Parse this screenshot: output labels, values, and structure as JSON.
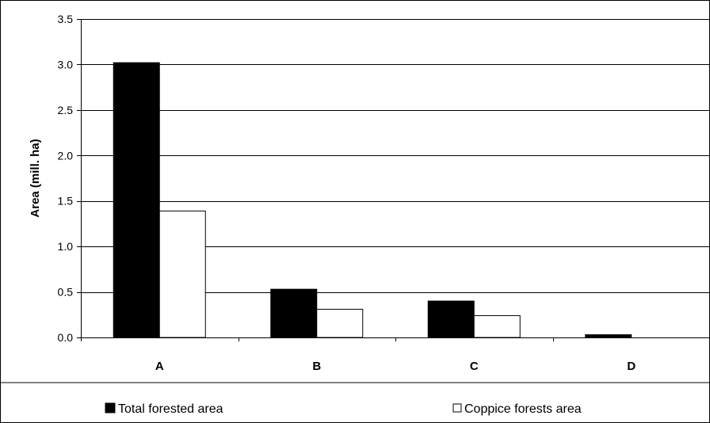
{
  "chart_data": {
    "type": "bar",
    "title": "",
    "xlabel": "",
    "ylabel": "Area (mill. ha)",
    "categories": [
      "A",
      "B",
      "C",
      "D"
    ],
    "series": [
      {
        "name": "Total forested area",
        "values": [
          3.02,
          0.53,
          0.4,
          0.03
        ],
        "color": "#000000"
      },
      {
        "name": "Coppice forests area",
        "values": [
          1.39,
          0.31,
          0.24,
          0.0
        ],
        "color": "#ffffff"
      }
    ],
    "ylim": [
      0,
      3.5
    ],
    "yticks": [
      0.0,
      0.5,
      1.0,
      1.5,
      2.0,
      2.5,
      3.0,
      3.5
    ],
    "ytick_labels": [
      "0.0",
      "0.5",
      "1.0",
      "1.5",
      "2.0",
      "2.5",
      "3.0",
      "3.5"
    ],
    "grid": true,
    "legend_position": "bottom"
  }
}
